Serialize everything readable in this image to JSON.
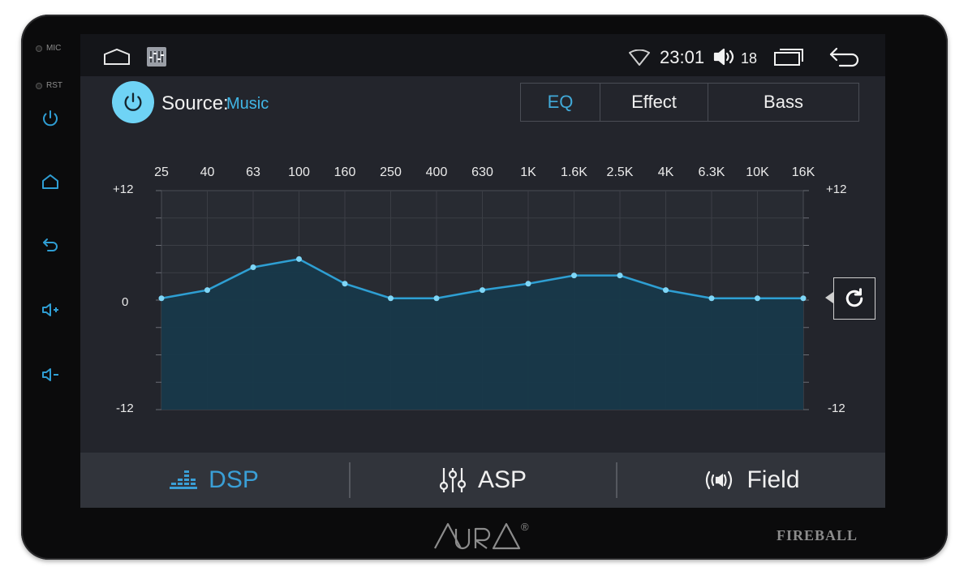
{
  "hardware": {
    "mic_label": "MIC",
    "rst_label": "RST",
    "side_buttons": [
      "power-icon",
      "home-icon",
      "back-icon",
      "volume-up-icon",
      "volume-down-icon"
    ]
  },
  "statusbar": {
    "time": "23:01",
    "volume": "18",
    "icons": [
      "home-outline-icon",
      "equalizer-app-icon",
      "wifi-icon",
      "speaker-icon",
      "recent-apps-icon",
      "back-arrow-icon"
    ]
  },
  "header": {
    "source_label": "Source:",
    "source_value": "Music",
    "tabs": [
      {
        "label": "EQ",
        "active": true
      },
      {
        "label": "Effect",
        "active": false
      },
      {
        "label": "Bass",
        "active": false
      }
    ]
  },
  "eq": {
    "frequencies": [
      "25",
      "40",
      "63",
      "100",
      "160",
      "250",
      "400",
      "630",
      "1K",
      "1.6K",
      "2.5K",
      "4K",
      "6.3K",
      "10K",
      "16K"
    ],
    "gains": [
      0.2,
      1.1,
      3.6,
      4.5,
      1.8,
      0.2,
      0.2,
      1.1,
      1.8,
      2.7,
      2.7,
      1.1,
      0.2,
      0.2,
      0.2
    ],
    "ymax": 12,
    "ymin": -12,
    "left_axis": {
      "top": "+12",
      "mid": "0",
      "bottom": "-12"
    },
    "right_axis": {
      "top": "+12",
      "bottom": "-12"
    },
    "line_color": "#2e9fd3",
    "point_color": "#7fd6f6"
  },
  "bottom_nav": [
    {
      "label": "DSP",
      "active": true
    },
    {
      "label": "ASP",
      "active": false
    },
    {
      "label": "Field",
      "active": false
    }
  ],
  "branding": {
    "logo": "AURA",
    "registered": "®",
    "model": "FIREBALL"
  },
  "colors": {
    "accent": "#41b6e6",
    "screen_bg": "#23252c",
    "statusbar_bg": "#141519"
  }
}
